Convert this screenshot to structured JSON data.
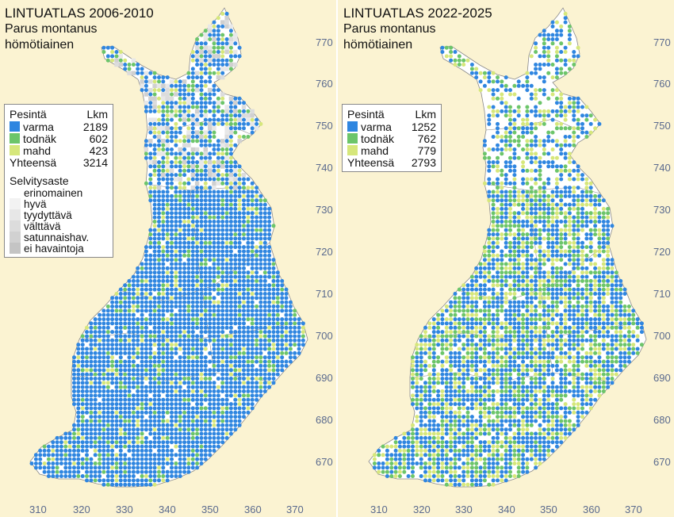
{
  "colors": {
    "background": "#fbf3d2",
    "land": "#ffffff",
    "border": "#8a8a8a",
    "varma": "#2f86e0",
    "todnak": "#6cc56a",
    "mahd": "#d6e77b",
    "tick": "#5a6a8e"
  },
  "left_map": {
    "title_line1": "LINTUATLAS 2006-2010",
    "title_line2": "Parus montanus",
    "title_line3": "hömötiainen",
    "legend": {
      "header_left": "Pesintä",
      "header_right": "Lkm",
      "rows": [
        {
          "label": "varma",
          "count": "2189",
          "color": "#2f86e0"
        },
        {
          "label": "todnäk",
          "count": "602",
          "color": "#6cc56a"
        },
        {
          "label": "mahd",
          "count": "423",
          "color": "#d6e77b"
        }
      ],
      "total_label": "Yhteensä",
      "total_count": "3214",
      "survey_title": "Selvitysaste",
      "survey_levels": [
        {
          "label": "erinomainen",
          "color": "#ffffff"
        },
        {
          "label": "hyvä",
          "color": "#f2f2f2"
        },
        {
          "label": "tyydyttävä",
          "color": "#e7e7e7"
        },
        {
          "label": "välttävä",
          "color": "#dcdcdc"
        },
        {
          "label": "satunnaishav.",
          "color": "#d1d1d1"
        },
        {
          "label": "ei havaintoja",
          "color": "#c4c4c4"
        }
      ]
    },
    "y_ticks": [
      "770",
      "760",
      "750",
      "740",
      "730",
      "720",
      "710",
      "700",
      "690",
      "680",
      "670"
    ],
    "x_ticks": [
      "310",
      "320",
      "330",
      "340",
      "350",
      "360",
      "370"
    ]
  },
  "right_map": {
    "title_line1": "LINTUATLAS 2022-2025",
    "title_line2": "Parus montanus",
    "title_line3": "hömötiainen",
    "legend": {
      "header_left": "Pesintä",
      "header_right": "Lkm",
      "rows": [
        {
          "label": "varma",
          "count": "1252",
          "color": "#2f86e0"
        },
        {
          "label": "todnäk",
          "count": "762",
          "color": "#6cc56a"
        },
        {
          "label": "mahd",
          "count": "779",
          "color": "#d6e77b"
        }
      ],
      "total_label": "Yhteensä",
      "total_count": "2793"
    },
    "y_ticks": [
      "770",
      "760",
      "750",
      "740",
      "730",
      "720",
      "710",
      "700",
      "690",
      "680",
      "670"
    ],
    "x_ticks": [
      "310",
      "320",
      "330",
      "340",
      "350",
      "360",
      "370"
    ]
  }
}
